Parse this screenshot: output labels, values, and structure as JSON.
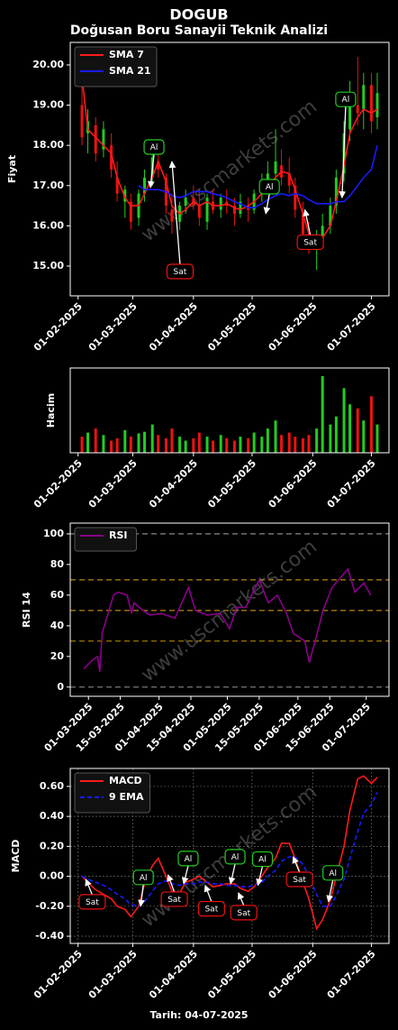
{
  "watermark": "www.uscmarkets.com",
  "chart_data": [
    {
      "type": "candlestick",
      "title": "DOGUB",
      "subtitle": "Doğusan Boru Sanayii Teknik Analizi",
      "ylabel": "Fiyat",
      "x": [
        "2025-02-03",
        "2025-02-06",
        "2025-02-10",
        "2025-02-14",
        "2025-02-18",
        "2025-02-21",
        "2025-02-25",
        "2025-02-28",
        "2025-03-04",
        "2025-03-07",
        "2025-03-11",
        "2025-03-14",
        "2025-03-18",
        "2025-03-21",
        "2025-03-25",
        "2025-03-28",
        "2025-04-01",
        "2025-04-04",
        "2025-04-08",
        "2025-04-11",
        "2025-04-15",
        "2025-04-18",
        "2025-04-22",
        "2025-04-25",
        "2025-04-29",
        "2025-05-02",
        "2025-05-06",
        "2025-05-09",
        "2025-05-13",
        "2025-05-16",
        "2025-05-20",
        "2025-05-23",
        "2025-05-27",
        "2025-05-30",
        "2025-06-03",
        "2025-06-06",
        "2025-06-10",
        "2025-06-13",
        "2025-06-17",
        "2025-06-20",
        "2025-06-24",
        "2025-06-27",
        "2025-07-01",
        "2025-07-04"
      ],
      "open": [
        19.0,
        18.3,
        18.5,
        17.9,
        18.0,
        17.2,
        16.6,
        16.6,
        16.2,
        16.8,
        17.2,
        17.6,
        17.2,
        16.4,
        16.1,
        16.5,
        16.7,
        16.5,
        16.1,
        16.6,
        16.4,
        16.6,
        16.5,
        16.3,
        16.5,
        16.4,
        16.8,
        17.0,
        17.3,
        17.5,
        17.3,
        17.0,
        16.3,
        15.8,
        15.6,
        15.7,
        16.0,
        16.5,
        17.3,
        18.4,
        19.0,
        18.9,
        19.5,
        18.7
      ],
      "high": [
        19.8,
        18.9,
        18.7,
        18.6,
        18.3,
        17.6,
        17.0,
        16.8,
        16.9,
        17.4,
        17.9,
        17.9,
        17.3,
        16.8,
        16.6,
        16.9,
        17.0,
        16.9,
        16.8,
        16.9,
        16.8,
        16.9,
        16.7,
        16.8,
        16.7,
        16.9,
        17.3,
        17.6,
        18.4,
        17.9,
        17.7,
        17.2,
        16.6,
        16.1,
        15.9,
        16.3,
        16.7,
        17.4,
        18.6,
        19.6,
        20.2,
        19.8,
        19.8,
        19.8
      ],
      "low": [
        18.0,
        17.8,
        17.6,
        17.7,
        17.2,
        16.6,
        16.2,
        15.9,
        16.0,
        16.6,
        17.0,
        17.2,
        16.3,
        15.8,
        15.9,
        16.3,
        16.4,
        16.0,
        15.9,
        16.3,
        16.2,
        16.3,
        16.0,
        16.2,
        16.1,
        16.3,
        16.6,
        16.8,
        17.0,
        17.0,
        16.8,
        16.2,
        15.6,
        15.3,
        14.9,
        15.5,
        15.8,
        16.3,
        17.1,
        18.1,
        18.5,
        18.4,
        18.3,
        18.4
      ],
      "close": [
        18.2,
        18.6,
        17.8,
        18.4,
        17.4,
        16.8,
        16.9,
        16.1,
        16.8,
        17.2,
        17.7,
        17.4,
        16.5,
        16.1,
        16.5,
        16.7,
        16.5,
        16.2,
        16.7,
        16.4,
        16.7,
        16.5,
        16.3,
        16.6,
        16.4,
        16.8,
        17.1,
        17.3,
        17.6,
        17.2,
        17.0,
        16.4,
        15.8,
        15.5,
        15.7,
        16.0,
        16.5,
        17.2,
        18.3,
        19.0,
        18.8,
        19.5,
        18.6,
        19.3
      ],
      "up_color": "#22cc22",
      "down_color": "#ee1111",
      "series": [
        {
          "name": "SMA 7",
          "color": "#ff1a1a",
          "values": [
            19.7,
            18.4,
            18.2,
            18.0,
            17.8,
            17.2,
            16.7,
            16.5,
            16.5,
            16.8,
            17.2,
            17.6,
            17.1,
            16.5,
            16.3,
            16.4,
            16.6,
            16.5,
            16.6,
            16.5,
            16.5,
            16.55,
            16.45,
            16.4,
            16.5,
            16.6,
            16.8,
            17.0,
            17.2,
            17.35,
            17.3,
            16.9,
            16.3,
            15.8,
            15.6,
            15.7,
            16.0,
            16.6,
            17.5,
            18.3,
            18.7,
            18.9,
            18.8,
            18.9
          ]
        },
        {
          "name": "SMA 21",
          "color": "#1a1aff",
          "values": [
            null,
            null,
            null,
            null,
            null,
            null,
            null,
            null,
            17.0,
            16.9,
            16.9,
            16.9,
            16.85,
            16.75,
            16.7,
            16.75,
            16.85,
            16.85,
            16.85,
            16.8,
            16.75,
            16.7,
            16.6,
            16.55,
            16.45,
            16.45,
            16.55,
            16.65,
            16.75,
            16.8,
            16.75,
            16.8,
            16.75,
            16.65,
            16.55,
            16.55,
            16.55,
            16.6,
            16.6,
            16.75,
            17.0,
            17.2,
            17.4,
            18.0
          ]
        }
      ],
      "xlim": [
        "2025-01-28",
        "2025-07-10"
      ],
      "xticks": [
        {
          "value": "2025-02-01",
          "label": "01-02-2025"
        },
        {
          "value": "2025-03-01",
          "label": "01-03-2025"
        },
        {
          "value": "2025-04-01",
          "label": "01-04-2025"
        },
        {
          "value": "2025-05-01",
          "label": "01-05-2025"
        },
        {
          "value": "2025-06-01",
          "label": "01-06-2025"
        },
        {
          "value": "2025-07-01",
          "label": "01-07-2025"
        }
      ],
      "ylim": [
        14.26,
        20.56
      ],
      "yticks": [
        {
          "value": 15,
          "label": "15.00"
        },
        {
          "value": 16,
          "label": "16.00"
        },
        {
          "value": 17,
          "label": "17.00"
        },
        {
          "value": 18,
          "label": "18.00"
        },
        {
          "value": 19,
          "label": "19.00"
        },
        {
          "value": 20,
          "label": "20.00"
        }
      ],
      "legend": "upper left",
      "annotations": [
        {
          "text": "Al",
          "x": "2025-03-10",
          "y": 16.95,
          "color": "#22cc22"
        },
        {
          "text": "Sat",
          "x": "2025-03-21",
          "y": 17.6,
          "color": "#ee1111"
        },
        {
          "text": "Al",
          "x": "2025-05-08",
          "y": 16.3,
          "color": "#22cc22"
        },
        {
          "text": "Sat",
          "x": "2025-05-28",
          "y": 16.4,
          "color": "#ee1111"
        },
        {
          "text": "Al",
          "x": "2025-06-16",
          "y": 16.7,
          "color": "#22cc22"
        }
      ]
    },
    {
      "type": "bar",
      "ylabel": "Hacim",
      "x": [
        "2025-02-03",
        "2025-02-06",
        "2025-02-10",
        "2025-02-14",
        "2025-02-18",
        "2025-02-21",
        "2025-02-25",
        "2025-02-28",
        "2025-03-04",
        "2025-03-07",
        "2025-03-11",
        "2025-03-14",
        "2025-03-18",
        "2025-03-21",
        "2025-03-25",
        "2025-03-28",
        "2025-04-01",
        "2025-04-04",
        "2025-04-08",
        "2025-04-11",
        "2025-04-15",
        "2025-04-18",
        "2025-04-22",
        "2025-04-25",
        "2025-04-29",
        "2025-05-02",
        "2025-05-06",
        "2025-05-09",
        "2025-05-13",
        "2025-05-16",
        "2025-05-20",
        "2025-05-23",
        "2025-05-27",
        "2025-05-30",
        "2025-06-03",
        "2025-06-06",
        "2025-06-10",
        "2025-06-13",
        "2025-06-17",
        "2025-06-20",
        "2025-06-24",
        "2025-06-27",
        "2025-07-01",
        "2025-07-04"
      ],
      "values": [
        20,
        25,
        30,
        22,
        15,
        18,
        28,
        20,
        24,
        26,
        35,
        22,
        18,
        30,
        20,
        15,
        18,
        25,
        20,
        15,
        22,
        18,
        15,
        20,
        18,
        25,
        20,
        30,
        40,
        22,
        25,
        20,
        18,
        22,
        30,
        95,
        35,
        45,
        80,
        60,
        55,
        40,
        70,
        35
      ],
      "xlim": [
        "2025-01-28",
        "2025-07-10"
      ],
      "xticks": [
        {
          "value": "2025-02-01",
          "label": "01-02-2025"
        },
        {
          "value": "2025-03-01",
          "label": "01-03-2025"
        },
        {
          "value": "2025-04-01",
          "label": "01-04-2025"
        },
        {
          "value": "2025-05-01",
          "label": "01-05-2025"
        },
        {
          "value": "2025-06-01",
          "label": "01-06-2025"
        },
        {
          "value": "2025-07-01",
          "label": "01-07-2025"
        }
      ],
      "ylim": [
        0,
        105
      ]
    },
    {
      "type": "line",
      "ylabel": "RSI 14",
      "x": [
        "2025-02-27",
        "2025-03-03",
        "2025-03-05",
        "2025-03-06",
        "2025-03-07",
        "2025-03-10",
        "2025-03-12",
        "2025-03-14",
        "2025-03-18",
        "2025-03-20",
        "2025-03-21",
        "2025-03-25",
        "2025-03-28",
        "2025-04-02",
        "2025-04-08",
        "2025-04-11",
        "2025-04-14",
        "2025-04-17",
        "2025-04-22",
        "2025-04-28",
        "2025-05-02",
        "2025-05-05",
        "2025-05-09",
        "2025-05-15",
        "2025-05-19",
        "2025-05-23",
        "2025-05-27",
        "2025-05-30",
        "2025-06-04",
        "2025-06-06",
        "2025-06-10",
        "2025-06-12",
        "2025-06-16",
        "2025-06-20",
        "2025-06-23",
        "2025-06-26",
        "2025-06-30",
        "2025-07-03"
      ],
      "series": [
        {
          "name": "RSI",
          "color": "#8b008b",
          "values": [
            12,
            18,
            20,
            10,
            35,
            50,
            60,
            62,
            60,
            48,
            55,
            50,
            47,
            48,
            45,
            55,
            65,
            50,
            47,
            48,
            38,
            52,
            52,
            70,
            55,
            60,
            48,
            35,
            30,
            16,
            38,
            50,
            65,
            72,
            77,
            62,
            68,
            60
          ]
        }
      ],
      "xlim": [
        "2025-02-21",
        "2025-07-11"
      ],
      "xticks": [
        {
          "value": "2025-03-01",
          "label": "01-03-2025"
        },
        {
          "value": "2025-03-15",
          "label": "15-03-2025"
        },
        {
          "value": "2025-04-01",
          "label": "01-04-2025"
        },
        {
          "value": "2025-04-15",
          "label": "15-04-2025"
        },
        {
          "value": "2025-05-01",
          "label": "01-05-2025"
        },
        {
          "value": "2025-05-15",
          "label": "15-05-2025"
        },
        {
          "value": "2025-06-01",
          "label": "01-06-2025"
        },
        {
          "value": "2025-06-15",
          "label": "15-06-2025"
        },
        {
          "value": "2025-07-01",
          "label": "01-07-2025"
        }
      ],
      "ylim": [
        -6,
        107
      ],
      "yticks": [
        0,
        20,
        40,
        60,
        80,
        100
      ],
      "hlines": [
        0,
        30,
        50,
        70,
        100
      ],
      "hline_colors": [
        "#888888",
        "#b8860b",
        "#b8860b",
        "#b8860b",
        "#888888"
      ],
      "legend": "upper left"
    },
    {
      "type": "line",
      "ylabel": "MACD",
      "xlabel": "Tarih: 04-07-2025",
      "x": [
        "2025-02-03",
        "2025-02-06",
        "2025-02-10",
        "2025-02-14",
        "2025-02-18",
        "2025-02-21",
        "2025-02-25",
        "2025-02-28",
        "2025-03-04",
        "2025-03-07",
        "2025-03-11",
        "2025-03-14",
        "2025-03-18",
        "2025-03-21",
        "2025-03-25",
        "2025-03-28",
        "2025-04-01",
        "2025-04-04",
        "2025-04-08",
        "2025-04-11",
        "2025-04-15",
        "2025-04-18",
        "2025-04-22",
        "2025-04-25",
        "2025-04-29",
        "2025-05-02",
        "2025-05-06",
        "2025-05-09",
        "2025-05-13",
        "2025-05-16",
        "2025-05-20",
        "2025-05-23",
        "2025-05-27",
        "2025-05-30",
        "2025-06-03",
        "2025-06-06",
        "2025-06-10",
        "2025-06-13",
        "2025-06-17",
        "2025-06-20",
        "2025-06-24",
        "2025-06-27",
        "2025-07-01",
        "2025-07-04"
      ],
      "series": [
        {
          "name": "MACD",
          "color": "#ff1a1a",
          "values": [
            0.0,
            -0.04,
            -0.09,
            -0.12,
            -0.15,
            -0.2,
            -0.22,
            -0.27,
            -0.2,
            -0.05,
            0.07,
            0.12,
            0.0,
            -0.1,
            -0.11,
            -0.04,
            -0.02,
            0.0,
            -0.04,
            -0.07,
            -0.06,
            -0.05,
            -0.05,
            -0.08,
            -0.1,
            -0.07,
            0.0,
            0.06,
            0.12,
            0.22,
            0.22,
            0.12,
            -0.04,
            -0.15,
            -0.35,
            -0.29,
            -0.16,
            0.0,
            0.2,
            0.44,
            0.65,
            0.67,
            0.62,
            0.66
          ]
        },
        {
          "name": "9 EMA",
          "color": "#1a1aff",
          "style": "dashed",
          "values": [
            0.0,
            -0.02,
            -0.04,
            -0.06,
            -0.09,
            -0.12,
            -0.15,
            -0.19,
            -0.2,
            -0.17,
            -0.1,
            -0.05,
            -0.03,
            -0.05,
            -0.06,
            -0.05,
            -0.05,
            -0.04,
            -0.04,
            -0.05,
            -0.05,
            -0.06,
            -0.06,
            -0.07,
            -0.07,
            -0.06,
            -0.04,
            0.0,
            0.04,
            0.1,
            0.13,
            0.13,
            0.08,
            0.0,
            -0.12,
            -0.2,
            -0.2,
            -0.13,
            -0.02,
            0.12,
            0.3,
            0.42,
            0.48,
            0.56
          ]
        }
      ],
      "xlim": [
        "2025-01-28",
        "2025-07-10"
      ],
      "xticks": [
        {
          "value": "2025-02-01",
          "label": "01-02-2025"
        },
        {
          "value": "2025-03-01",
          "label": "01-03-2025"
        },
        {
          "value": "2025-04-01",
          "label": "01-04-2025"
        },
        {
          "value": "2025-05-01",
          "label": "01-05-2025"
        },
        {
          "value": "2025-06-01",
          "label": "01-06-2025"
        },
        {
          "value": "2025-07-01",
          "label": "01-07-2025"
        }
      ],
      "ylim": [
        -0.448,
        0.72
      ],
      "yticks": [
        {
          "value": -0.4,
          "label": "-0.40"
        },
        {
          "value": -0.2,
          "label": "-0.20"
        },
        {
          "value": 0,
          "label": "0.00"
        },
        {
          "value": 0.2,
          "label": "0.20"
        },
        {
          "value": 0.4,
          "label": "0.40"
        },
        {
          "value": 0.6,
          "label": "0.60"
        }
      ],
      "grid": true,
      "legend": "upper left",
      "annotations": [
        {
          "text": "Sat",
          "x": "2025-02-05",
          "y": -0.02,
          "color": "#ee1111"
        },
        {
          "text": "Al",
          "x": "2025-03-05",
          "y": -0.2,
          "color": "#22cc22"
        },
        {
          "text": "Sat",
          "x": "2025-03-19",
          "y": 0.01,
          "color": "#ee1111"
        },
        {
          "text": "Al",
          "x": "2025-03-27",
          "y": -0.05,
          "color": "#22cc22"
        },
        {
          "text": "Sat",
          "x": "2025-04-07",
          "y": -0.06,
          "color": "#ee1111"
        },
        {
          "text": "Al",
          "x": "2025-04-20",
          "y": -0.05,
          "color": "#22cc22"
        },
        {
          "text": "Sat",
          "x": "2025-04-24",
          "y": -0.11,
          "color": "#ee1111"
        },
        {
          "text": "Al",
          "x": "2025-05-04",
          "y": -0.06,
          "color": "#22cc22"
        },
        {
          "text": "Sat",
          "x": "2025-05-22",
          "y": 0.13,
          "color": "#ee1111"
        },
        {
          "text": "Al",
          "x": "2025-06-09",
          "y": -0.17,
          "color": "#22cc22"
        }
      ]
    }
  ]
}
